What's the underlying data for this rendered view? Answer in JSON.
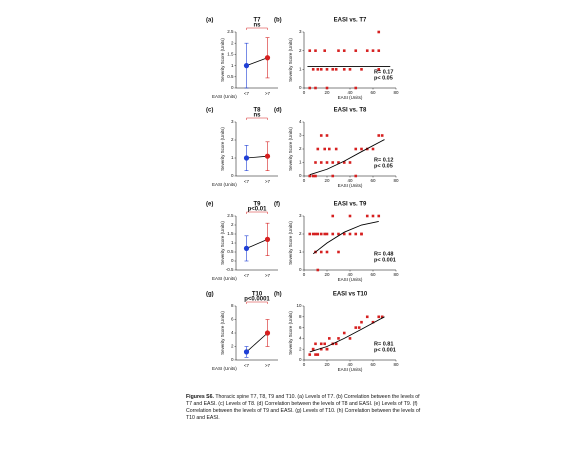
{
  "chart_data": [
    {
      "type": "dot",
      "label": "(a)",
      "title": "T7",
      "significance": "ns",
      "y_label": "Severity Score (Units)",
      "x_label": "EASI (Units)",
      "categories": [
        "<7",
        ">7"
      ],
      "values": [
        1.0,
        1.35
      ],
      "errors": [
        1.0,
        0.9
      ],
      "colors": [
        "#1f3fd6",
        "#d62020"
      ],
      "ylim": [
        0,
        2.5
      ],
      "yticks": [
        0,
        0.5,
        1,
        1.5,
        2,
        2.5
      ]
    },
    {
      "type": "scatter",
      "label": "(b)",
      "title": "EASI vs. T7",
      "y_label": "Severity Score (Units)",
      "x_label": "EASI (Units)",
      "color": "#d62020",
      "x": [
        5,
        10,
        30,
        35,
        45,
        55,
        60,
        65,
        8,
        12,
        15,
        20,
        28,
        35,
        40,
        50,
        65,
        5,
        10,
        20,
        45,
        65,
        18,
        25
      ],
      "values": [
        2,
        2,
        2,
        2,
        2,
        2,
        2,
        2,
        1,
        1,
        1,
        1,
        1,
        1,
        1,
        1,
        1,
        0,
        0,
        0,
        0,
        3,
        2,
        1
      ],
      "fit": {
        "x": [
          3,
          75
        ],
        "values": [
          1.15,
          1.15
        ]
      },
      "annotations": [
        "R= 0.17",
        "p< 0.05"
      ],
      "xlim": [
        0,
        80
      ],
      "xticks": [
        0,
        20,
        40,
        60,
        80
      ],
      "ylim": [
        0,
        3
      ],
      "yticks": [
        0,
        1,
        2,
        3
      ]
    },
    {
      "type": "dot",
      "label": "(c)",
      "title": "T8",
      "significance": "ns",
      "y_label": "Severity Score (Units)",
      "x_label": "EASI (Units)",
      "categories": [
        "<7",
        ">7"
      ],
      "values": [
        1.0,
        1.1
      ],
      "errors": [
        0.7,
        0.8
      ],
      "colors": [
        "#1f3fd6",
        "#d62020"
      ],
      "ylim": [
        0,
        3
      ],
      "yticks": [
        0,
        1,
        2,
        3
      ]
    },
    {
      "type": "scatter",
      "label": "(d)",
      "title": "EASI vs. T8",
      "y_label": "Severity Score (Units)",
      "x_label": "EASI (Units)",
      "color": "#d62020",
      "x": [
        5,
        10,
        15,
        20,
        25,
        30,
        40,
        45,
        50,
        12,
        18,
        22,
        28,
        35,
        8,
        15,
        20,
        55,
        60,
        65,
        68,
        10,
        25,
        45
      ],
      "values": [
        0,
        0,
        1,
        1,
        1,
        1,
        1,
        2,
        2,
        2,
        2,
        2,
        2,
        1,
        0,
        3,
        3,
        2,
        2,
        3,
        3,
        1,
        0,
        0
      ],
      "fit": {
        "x": [
          5,
          20,
          35,
          50,
          70
        ],
        "values": [
          0.1,
          0.5,
          1.1,
          1.8,
          2.7
        ]
      },
      "annotations": [
        "R= 0.12",
        "p< 0.05"
      ],
      "xlim": [
        0,
        80
      ],
      "xticks": [
        0,
        20,
        40,
        60,
        80
      ],
      "ylim": [
        0,
        4
      ],
      "yticks": [
        0,
        1,
        2,
        3,
        4
      ]
    },
    {
      "type": "dot",
      "label": "(e)",
      "title": "T9",
      "significance": "p<0.01",
      "y_label": "Severity Score (Units)",
      "x_label": "EASI (Units)",
      "categories": [
        "<7",
        ">7"
      ],
      "values": [
        0.7,
        1.2
      ],
      "errors": [
        0.7,
        0.9
      ],
      "colors": [
        "#1f3fd6",
        "#d62020"
      ],
      "ylim": [
        -0.5,
        2.5
      ],
      "yticks": [
        -0.5,
        0,
        0.5,
        1,
        1.5,
        2,
        2.5
      ]
    },
    {
      "type": "scatter",
      "label": "(f)",
      "title": "EASI vs. T9",
      "y_label": "Severity Score (Units)",
      "x_label": "EASI (Units)",
      "color": "#d62020",
      "x": [
        5,
        8,
        10,
        12,
        15,
        18,
        20,
        25,
        30,
        35,
        40,
        45,
        50,
        55,
        60,
        65,
        10,
        15,
        20,
        30,
        12,
        25,
        40,
        50
      ],
      "values": [
        2,
        2,
        2,
        2,
        2,
        2,
        2,
        2,
        2,
        2,
        2,
        2,
        2,
        3,
        3,
        3,
        1,
        1,
        1,
        1,
        0,
        3,
        3,
        2
      ],
      "fit": {
        "x": [
          8,
          20,
          35,
          50,
          65
        ],
        "values": [
          0.9,
          1.5,
          2.1,
          2.5,
          2.7
        ]
      },
      "annotations": [
        "R= 0.48",
        "p< 0.001"
      ],
      "xlim": [
        0,
        80
      ],
      "xticks": [
        0,
        20,
        40,
        60,
        80
      ],
      "ylim": [
        0,
        3
      ],
      "yticks": [
        0,
        1,
        2,
        3
      ]
    },
    {
      "type": "dot",
      "label": "(g)",
      "title": "T10",
      "significance": "p<0.0001",
      "y_label": "Severity Score (Units)",
      "x_label": "EASI (Units)",
      "categories": [
        "<7",
        ">7"
      ],
      "values": [
        1.2,
        4.0
      ],
      "errors": [
        0.8,
        2.0
      ],
      "colors": [
        "#1f3fd6",
        "#d62020"
      ],
      "ylim": [
        0,
        8
      ],
      "yticks": [
        0,
        2,
        4,
        6,
        8
      ]
    },
    {
      "type": "scatter",
      "label": "(h)",
      "title": "EASI vs T10",
      "y_label": "Severity Score (Units)",
      "x_label": "EASI (Units)",
      "color": "#d62020",
      "x": [
        5,
        8,
        10,
        12,
        15,
        18,
        20,
        22,
        25,
        30,
        35,
        40,
        45,
        50,
        55,
        60,
        65,
        10,
        15,
        20,
        8,
        28,
        48,
        68
      ],
      "values": [
        1,
        2,
        3,
        1,
        2,
        3,
        2,
        4,
        3,
        4,
        5,
        4,
        6,
        7,
        8,
        7,
        8,
        1,
        3,
        2,
        2,
        3,
        6,
        8
      ],
      "fit": {
        "x": [
          5,
          20,
          35,
          50,
          70
        ],
        "values": [
          1.5,
          2.5,
          4,
          5.7,
          8
        ]
      },
      "annotations": [
        "R= 0.81",
        "p< 0.001"
      ],
      "xlim": [
        0,
        80
      ],
      "xticks": [
        0,
        20,
        40,
        60,
        80
      ],
      "ylim": [
        0,
        10
      ],
      "yticks": [
        0,
        2,
        4,
        6,
        8,
        10
      ]
    }
  ],
  "caption": {
    "label": "Figures S6.",
    "text": "Thoracic spine T7, T8, T9 and T10. (a) Levels of T7. (b) Correlation between the levels of T7 and EASI. (c) Levels of T8. (d) Correlation between the levels of T8 and EASI. (e) Levels of T9. (f) Correlation between the levels of T9 and EASI. (g) Levels of T10. (h) Correlation between the levels of T10 and EASI."
  }
}
